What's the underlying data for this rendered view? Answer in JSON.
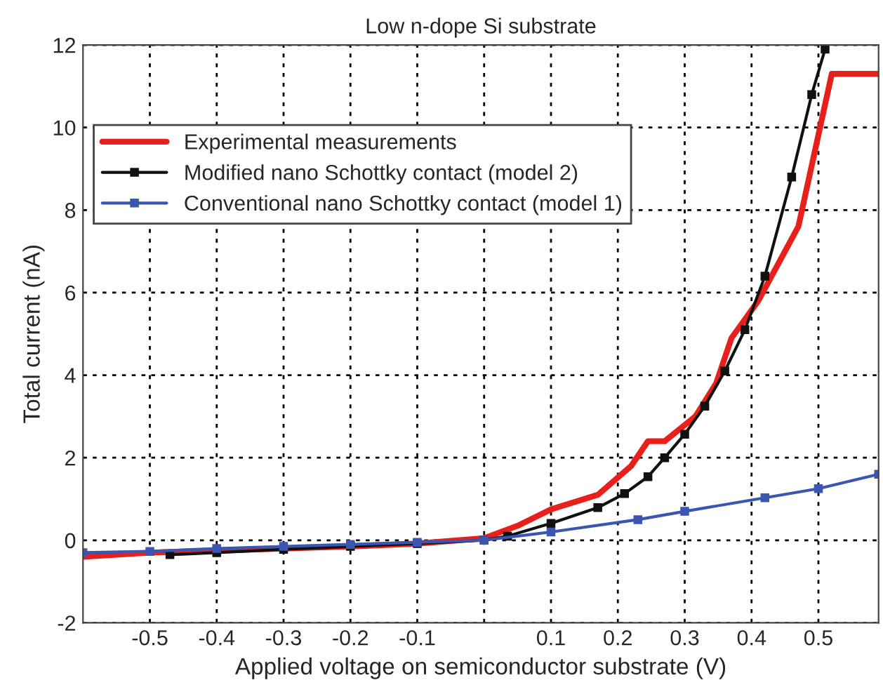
{
  "chart_data": {
    "type": "line",
    "title": "Low n-dope Si substrate",
    "xlabel": "Applied voltage on semiconductor substrate (V)",
    "ylabel": "Total current (nA)",
    "xlim": [
      -0.6,
      0.59
    ],
    "ylim": [
      -2,
      12
    ],
    "xticks": [
      -0.5,
      -0.4,
      -0.3,
      -0.2,
      -0.1,
      {
        "value": 0,
        "label": null
      },
      0.1,
      0.2,
      0.3,
      0.4,
      0.5
    ],
    "yticks": [
      -2,
      0,
      2,
      4,
      6,
      8,
      10,
      12
    ],
    "grid": true,
    "legend": "top left",
    "series": [
      {
        "name": "Experimental measurements",
        "color": "#e8201c",
        "marker": "none",
        "x": [
          -0.6,
          -0.5,
          -0.4,
          -0.3,
          -0.2,
          -0.1,
          0,
          0.05,
          0.1,
          0.17,
          0.22,
          0.245,
          0.27,
          0.316,
          0.347,
          0.37,
          0.41,
          0.47,
          0.52,
          0.59
        ],
        "values": [
          -0.4,
          -0.3,
          -0.25,
          -0.2,
          -0.15,
          -0.08,
          0.05,
          0.35,
          0.75,
          1.1,
          1.8,
          2.4,
          2.4,
          3.0,
          3.8,
          4.9,
          5.8,
          7.6,
          11.3,
          11.3
        ]
      },
      {
        "name": "Modified nano Schottky contact (model 2)",
        "color": "#111111",
        "marker": "square",
        "x": [
          -0.47,
          -0.4,
          -0.3,
          -0.2,
          -0.1,
          0,
          0.035,
          0.1,
          0.17,
          0.21,
          0.245,
          0.27,
          0.3,
          0.33,
          0.36,
          0.39,
          0.42,
          0.46,
          0.49,
          0.51
        ],
        "values": [
          -0.35,
          -0.3,
          -0.22,
          -0.15,
          -0.08,
          0.0,
          0.1,
          0.41,
          0.79,
          1.13,
          1.54,
          2.0,
          2.57,
          3.25,
          4.1,
          5.1,
          6.4,
          8.8,
          10.8,
          11.9
        ]
      },
      {
        "name": "Conventional nano Schottky contact (model 1)",
        "color": "#3a56b0",
        "marker": "square",
        "x": [
          -0.6,
          -0.5,
          -0.4,
          -0.3,
          -0.2,
          -0.1,
          0,
          0.1,
          0.23,
          0.3,
          0.42,
          0.5,
          0.59
        ],
        "values": [
          -0.3,
          -0.27,
          -0.2,
          -0.15,
          -0.1,
          -0.05,
          0.0,
          0.2,
          0.5,
          0.7,
          1.03,
          1.25,
          1.6
        ]
      }
    ]
  }
}
